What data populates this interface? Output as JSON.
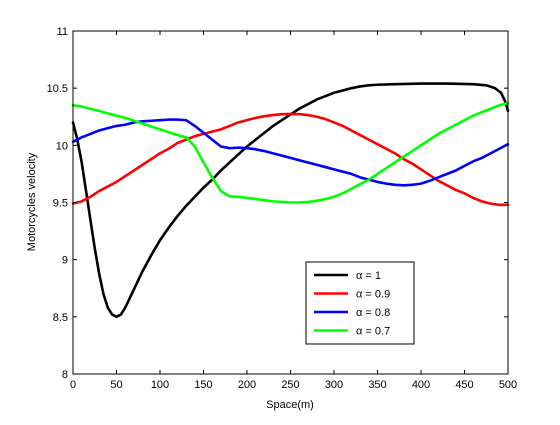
{
  "chart_data": {
    "type": "line",
    "title": "",
    "xlabel": "Space(m)",
    "ylabel": "Motorcycles velocity",
    "xlim": [
      0,
      500
    ],
    "ylim": [
      8,
      11
    ],
    "xticks": [
      0,
      50,
      100,
      150,
      200,
      250,
      300,
      350,
      400,
      450,
      500
    ],
    "yticks": [
      8,
      8.5,
      9,
      9.5,
      10,
      10.5,
      11
    ],
    "grid": false,
    "legend_position": "bottom-center",
    "series": [
      {
        "name": "α = 1",
        "color": "#000000",
        "points": [
          [
            0,
            10.2
          ],
          [
            5,
            10.05
          ],
          [
            10,
            9.85
          ],
          [
            15,
            9.6
          ],
          [
            20,
            9.35
          ],
          [
            25,
            9.1
          ],
          [
            30,
            8.88
          ],
          [
            35,
            8.7
          ],
          [
            40,
            8.58
          ],
          [
            45,
            8.52
          ],
          [
            50,
            8.5
          ],
          [
            55,
            8.52
          ],
          [
            60,
            8.58
          ],
          [
            70,
            8.74
          ],
          [
            80,
            8.9
          ],
          [
            90,
            9.04
          ],
          [
            100,
            9.17
          ],
          [
            110,
            9.28
          ],
          [
            120,
            9.38
          ],
          [
            130,
            9.47
          ],
          [
            140,
            9.55
          ],
          [
            150,
            9.63
          ],
          [
            160,
            9.7
          ],
          [
            170,
            9.78
          ],
          [
            180,
            9.85
          ],
          [
            190,
            9.92
          ],
          [
            200,
            9.99
          ],
          [
            210,
            10.05
          ],
          [
            220,
            10.11
          ],
          [
            230,
            10.17
          ],
          [
            240,
            10.22
          ],
          [
            250,
            10.27
          ],
          [
            260,
            10.32
          ],
          [
            270,
            10.36
          ],
          [
            280,
            10.4
          ],
          [
            290,
            10.43
          ],
          [
            300,
            10.46
          ],
          [
            310,
            10.48
          ],
          [
            320,
            10.5
          ],
          [
            330,
            10.515
          ],
          [
            340,
            10.525
          ],
          [
            350,
            10.53
          ],
          [
            370,
            10.535
          ],
          [
            400,
            10.54
          ],
          [
            430,
            10.54
          ],
          [
            460,
            10.535
          ],
          [
            475,
            10.525
          ],
          [
            485,
            10.5
          ],
          [
            492,
            10.46
          ],
          [
            497,
            10.38
          ],
          [
            500,
            10.3
          ]
        ]
      },
      {
        "name": "α = 0.9",
        "color": "#ff0000",
        "points": [
          [
            0,
            9.49
          ],
          [
            10,
            9.51
          ],
          [
            20,
            9.55
          ],
          [
            30,
            9.6
          ],
          [
            40,
            9.64
          ],
          [
            50,
            9.68
          ],
          [
            60,
            9.73
          ],
          [
            70,
            9.78
          ],
          [
            80,
            9.83
          ],
          [
            90,
            9.88
          ],
          [
            100,
            9.93
          ],
          [
            110,
            9.97
          ],
          [
            120,
            10.02
          ],
          [
            130,
            10.05
          ],
          [
            140,
            10.08
          ],
          [
            150,
            10.1
          ],
          [
            160,
            10.12
          ],
          [
            170,
            10.14
          ],
          [
            180,
            10.17
          ],
          [
            190,
            10.2
          ],
          [
            200,
            10.22
          ],
          [
            210,
            10.24
          ],
          [
            220,
            10.255
          ],
          [
            230,
            10.265
          ],
          [
            240,
            10.272
          ],
          [
            250,
            10.275
          ],
          [
            260,
            10.273
          ],
          [
            270,
            10.265
          ],
          [
            280,
            10.25
          ],
          [
            290,
            10.23
          ],
          [
            300,
            10.2
          ],
          [
            310,
            10.17
          ],
          [
            320,
            10.13
          ],
          [
            330,
            10.09
          ],
          [
            340,
            10.05
          ],
          [
            350,
            10.01
          ],
          [
            360,
            9.97
          ],
          [
            370,
            9.93
          ],
          [
            380,
            9.88
          ],
          [
            390,
            9.84
          ],
          [
            400,
            9.79
          ],
          [
            410,
            9.74
          ],
          [
            420,
            9.69
          ],
          [
            430,
            9.65
          ],
          [
            440,
            9.61
          ],
          [
            450,
            9.58
          ],
          [
            460,
            9.54
          ],
          [
            470,
            9.51
          ],
          [
            480,
            9.49
          ],
          [
            490,
            9.48
          ],
          [
            500,
            9.48
          ]
        ]
      },
      {
        "name": "α = 0.8",
        "color": "#0000ff",
        "points": [
          [
            0,
            10.03
          ],
          [
            10,
            10.07
          ],
          [
            20,
            10.1
          ],
          [
            30,
            10.13
          ],
          [
            40,
            10.15
          ],
          [
            50,
            10.17
          ],
          [
            60,
            10.18
          ],
          [
            70,
            10.2
          ],
          [
            80,
            10.21
          ],
          [
            90,
            10.215
          ],
          [
            100,
            10.22
          ],
          [
            110,
            10.225
          ],
          [
            120,
            10.225
          ],
          [
            130,
            10.22
          ],
          [
            140,
            10.17
          ],
          [
            150,
            10.11
          ],
          [
            160,
            10.05
          ],
          [
            170,
            9.99
          ],
          [
            180,
            9.975
          ],
          [
            190,
            9.98
          ],
          [
            200,
            9.975
          ],
          [
            210,
            9.965
          ],
          [
            220,
            9.95
          ],
          [
            230,
            9.93
          ],
          [
            240,
            9.91
          ],
          [
            250,
            9.89
          ],
          [
            260,
            9.87
          ],
          [
            270,
            9.85
          ],
          [
            280,
            9.83
          ],
          [
            290,
            9.81
          ],
          [
            300,
            9.79
          ],
          [
            310,
            9.77
          ],
          [
            320,
            9.75
          ],
          [
            330,
            9.72
          ],
          [
            340,
            9.7
          ],
          [
            350,
            9.68
          ],
          [
            360,
            9.665
          ],
          [
            370,
            9.655
          ],
          [
            380,
            9.65
          ],
          [
            390,
            9.655
          ],
          [
            400,
            9.665
          ],
          [
            410,
            9.69
          ],
          [
            420,
            9.72
          ],
          [
            430,
            9.75
          ],
          [
            440,
            9.78
          ],
          [
            450,
            9.82
          ],
          [
            460,
            9.86
          ],
          [
            470,
            9.89
          ],
          [
            480,
            9.93
          ],
          [
            490,
            9.97
          ],
          [
            500,
            10.01
          ]
        ]
      },
      {
        "name": "α = 0.7",
        "color": "#00ff00",
        "points": [
          [
            0,
            10.35
          ],
          [
            10,
            10.34
          ],
          [
            20,
            10.32
          ],
          [
            30,
            10.3
          ],
          [
            40,
            10.28
          ],
          [
            50,
            10.26
          ],
          [
            60,
            10.24
          ],
          [
            70,
            10.215
          ],
          [
            80,
            10.19
          ],
          [
            90,
            10.165
          ],
          [
            100,
            10.14
          ],
          [
            110,
            10.115
          ],
          [
            120,
            10.09
          ],
          [
            130,
            10.07
          ],
          [
            140,
            9.99
          ],
          [
            150,
            9.85
          ],
          [
            160,
            9.72
          ],
          [
            170,
            9.6
          ],
          [
            180,
            9.555
          ],
          [
            190,
            9.55
          ],
          [
            200,
            9.54
          ],
          [
            210,
            9.53
          ],
          [
            220,
            9.52
          ],
          [
            230,
            9.51
          ],
          [
            240,
            9.505
          ],
          [
            250,
            9.5
          ],
          [
            260,
            9.5
          ],
          [
            270,
            9.505
          ],
          [
            280,
            9.515
          ],
          [
            290,
            9.53
          ],
          [
            300,
            9.55
          ],
          [
            310,
            9.58
          ],
          [
            320,
            9.62
          ],
          [
            330,
            9.66
          ],
          [
            340,
            9.7
          ],
          [
            350,
            9.75
          ],
          [
            360,
            9.8
          ],
          [
            370,
            9.85
          ],
          [
            380,
            9.9
          ],
          [
            390,
            9.95
          ],
          [
            400,
            10.0
          ],
          [
            410,
            10.05
          ],
          [
            420,
            10.1
          ],
          [
            430,
            10.14
          ],
          [
            440,
            10.18
          ],
          [
            450,
            10.22
          ],
          [
            460,
            10.26
          ],
          [
            470,
            10.29
          ],
          [
            480,
            10.32
          ],
          [
            490,
            10.35
          ],
          [
            500,
            10.37
          ]
        ]
      }
    ]
  }
}
